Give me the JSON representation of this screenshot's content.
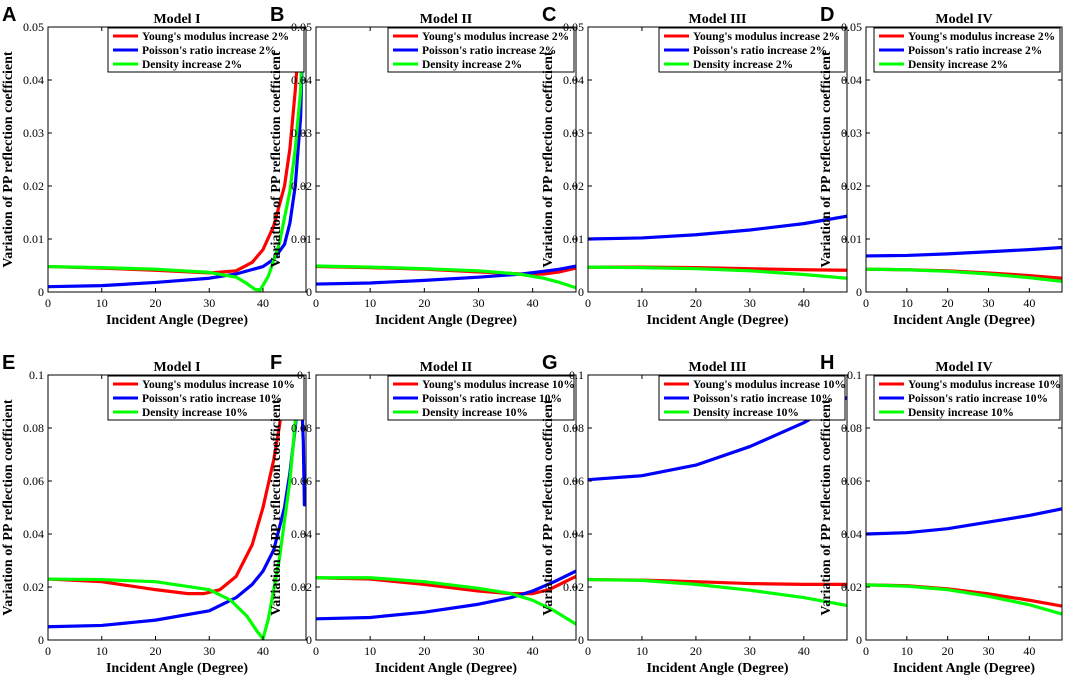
{
  "chart_data": [
    {
      "panel": "A",
      "type": "line",
      "title": "Model I",
      "xlabel": "Incident Angle (Degree)",
      "ylabel": "Variation of PP reflection coefficient",
      "xlim": [
        0,
        48
      ],
      "ylim": [
        0,
        0.05
      ],
      "xticks": [
        0,
        10,
        20,
        30,
        40
      ],
      "yticks": [
        0,
        0.01,
        0.02,
        0.03,
        0.04,
        0.05
      ],
      "ytick_labels": [
        "0",
        "0.01",
        "0.02",
        "0.03",
        "0.04",
        "0.05"
      ],
      "legend_position": "top-right",
      "series": [
        {
          "name": "Young's modulus increase 2%",
          "color": "#ff0000",
          "x": [
            0,
            10,
            20,
            30,
            35,
            38,
            40,
            42,
            44,
            45,
            46,
            47
          ],
          "y": [
            0.0048,
            0.0045,
            0.0041,
            0.0036,
            0.004,
            0.0056,
            0.008,
            0.0125,
            0.02,
            0.027,
            0.038,
            0.052
          ]
        },
        {
          "name": "Poisson's ratio increase 2%",
          "color": "#0000ff",
          "x": [
            0,
            10,
            20,
            30,
            35,
            40,
            42,
            44,
            45,
            46,
            47,
            47.5
          ],
          "y": [
            0.001,
            0.0012,
            0.0018,
            0.0026,
            0.0034,
            0.0048,
            0.0062,
            0.009,
            0.013,
            0.02,
            0.033,
            0.052
          ]
        },
        {
          "name": "Density increase 2%",
          "color": "#00ff00",
          "x": [
            0,
            10,
            20,
            30,
            35,
            37,
            38.5,
            39.5,
            41,
            43,
            45,
            46,
            47,
            47.5
          ],
          "y": [
            0.0048,
            0.0046,
            0.0043,
            0.0037,
            0.0028,
            0.0016,
            0.0005,
            0.0004,
            0.003,
            0.009,
            0.019,
            0.027,
            0.038,
            0.052
          ]
        }
      ]
    },
    {
      "panel": "B",
      "type": "line",
      "title": "Model II",
      "xlabel": "Incident Angle (Degree)",
      "ylabel": "Variation of PP reflection coefficient",
      "xlim": [
        0,
        48
      ],
      "ylim": [
        0,
        0.05
      ],
      "xticks": [
        0,
        10,
        20,
        30,
        40
      ],
      "yticks": [
        0,
        0.01,
        0.02,
        0.03,
        0.04,
        0.05
      ],
      "ytick_labels": [
        "0",
        "0.01",
        "0.02",
        "0.03",
        "0.04",
        "0.05"
      ],
      "legend_position": "top-right",
      "series": [
        {
          "name": "Young's modulus increase 2%",
          "color": "#ff0000",
          "x": [
            0,
            10,
            20,
            30,
            38,
            42,
            45,
            48
          ],
          "y": [
            0.0048,
            0.0046,
            0.0043,
            0.0038,
            0.0034,
            0.0034,
            0.0038,
            0.0045
          ]
        },
        {
          "name": "Poisson's ratio increase 2%",
          "color": "#0000ff",
          "x": [
            0,
            10,
            20,
            30,
            38,
            42,
            45,
            48
          ],
          "y": [
            0.0015,
            0.0017,
            0.0022,
            0.0028,
            0.0034,
            0.0039,
            0.0043,
            0.0049
          ]
        },
        {
          "name": "Density increase 2%",
          "color": "#00ff00",
          "x": [
            0,
            10,
            20,
            30,
            35,
            38,
            42,
            45,
            48
          ],
          "y": [
            0.0049,
            0.0047,
            0.0044,
            0.004,
            0.0036,
            0.0033,
            0.0026,
            0.0018,
            0.0008
          ]
        }
      ]
    },
    {
      "panel": "C",
      "type": "line",
      "title": "Model III",
      "xlabel": "Incident Angle (Degree)",
      "ylabel": "Variation of PP reflection coefficient",
      "xlim": [
        0,
        48
      ],
      "ylim": [
        0,
        0.05
      ],
      "xticks": [
        0,
        10,
        20,
        30,
        40
      ],
      "yticks": [
        0,
        0.01,
        0.02,
        0.03,
        0.04,
        0.05
      ],
      "ytick_labels": [
        "0",
        "0.01",
        "0.02",
        "0.03",
        "0.04",
        "0.05"
      ],
      "legend_position": "top-right",
      "series": [
        {
          "name": "Young's modulus increase 2%",
          "color": "#ff0000",
          "x": [
            0,
            10,
            20,
            30,
            40,
            48
          ],
          "y": [
            0.0047,
            0.0047,
            0.0046,
            0.0044,
            0.0042,
            0.0041
          ]
        },
        {
          "name": "Poisson's ratio increase 2%",
          "color": "#0000ff",
          "x": [
            0,
            10,
            20,
            30,
            40,
            48
          ],
          "y": [
            0.01,
            0.0102,
            0.0108,
            0.0117,
            0.0129,
            0.0143
          ]
        },
        {
          "name": "Density increase 2%",
          "color": "#00ff00",
          "x": [
            0,
            10,
            20,
            30,
            40,
            48
          ],
          "y": [
            0.0047,
            0.0046,
            0.0044,
            0.004,
            0.0033,
            0.0026
          ]
        }
      ]
    },
    {
      "panel": "D",
      "type": "line",
      "title": "Model IV",
      "xlabel": "Incident Angle (Degree)",
      "ylabel": "Variation of PP reflection coefficient",
      "xlim": [
        0,
        48
      ],
      "ylim": [
        0,
        0.05
      ],
      "xticks": [
        0,
        10,
        20,
        30,
        40
      ],
      "yticks": [
        0,
        0.01,
        0.02,
        0.03,
        0.04,
        0.05
      ],
      "ytick_labels": [
        "0",
        "0.01",
        "0.02",
        "0.03",
        "0.04",
        "0.05"
      ],
      "legend_position": "top-right",
      "series": [
        {
          "name": "Young's modulus increase 2%",
          "color": "#ff0000",
          "x": [
            0,
            10,
            20,
            30,
            40,
            48
          ],
          "y": [
            0.0043,
            0.0042,
            0.004,
            0.0036,
            0.0031,
            0.0026
          ]
        },
        {
          "name": "Poisson's ratio increase 2%",
          "color": "#0000ff",
          "x": [
            0,
            10,
            20,
            30,
            40,
            48
          ],
          "y": [
            0.0068,
            0.0069,
            0.0072,
            0.0076,
            0.008,
            0.0084
          ]
        },
        {
          "name": "Density increase 2%",
          "color": "#00ff00",
          "x": [
            0,
            10,
            20,
            30,
            40,
            48
          ],
          "y": [
            0.0043,
            0.0042,
            0.0039,
            0.0034,
            0.0027,
            0.002
          ]
        }
      ]
    },
    {
      "panel": "E",
      "type": "line",
      "title": "Model I",
      "xlabel": "Incident Angle (Degree)",
      "ylabel": "Variation of PP reflection coefficient",
      "xlim": [
        0,
        48
      ],
      "ylim": [
        0,
        0.1
      ],
      "xticks": [
        0,
        10,
        20,
        30,
        40
      ],
      "yticks": [
        0,
        0.02,
        0.04,
        0.06,
        0.08,
        0.1
      ],
      "ytick_labels": [
        "0",
        "0.02",
        "0.04",
        "0.06",
        "0.08",
        "0.1"
      ],
      "legend_position": "top-right",
      "series": [
        {
          "name": "Young's modulus increase 10%",
          "color": "#ff0000",
          "x": [
            0,
            10,
            20,
            26,
            29,
            32,
            35,
            38,
            40,
            42,
            43,
            44,
            44.5
          ],
          "y": [
            0.023,
            0.022,
            0.019,
            0.0175,
            0.0175,
            0.019,
            0.024,
            0.036,
            0.05,
            0.068,
            0.08,
            0.094,
            0.101
          ]
        },
        {
          "name": "Poisson's ratio increase 10%",
          "color": "#0000ff",
          "x": [
            0,
            10,
            20,
            30,
            35,
            38,
            40,
            42,
            44,
            45,
            46,
            47,
            47.5,
            47.7
          ],
          "y": [
            0.005,
            0.0055,
            0.0075,
            0.011,
            0.016,
            0.021,
            0.026,
            0.034,
            0.05,
            0.063,
            0.08,
            0.101,
            0.075,
            0.051
          ]
        },
        {
          "name": "Density increase 10%",
          "color": "#00ff00",
          "x": [
            0,
            10,
            20,
            30,
            34,
            37,
            39,
            40,
            41,
            43,
            45,
            46,
            46.7
          ],
          "y": [
            0.023,
            0.0228,
            0.022,
            0.019,
            0.015,
            0.009,
            0.003,
            0.0005,
            0.008,
            0.03,
            0.06,
            0.082,
            0.101
          ]
        }
      ]
    },
    {
      "panel": "F",
      "type": "line",
      "title": "Model II",
      "xlabel": "Incident Angle (Degree)",
      "ylabel": "Variation of PP reflection coefficient",
      "xlim": [
        0,
        48
      ],
      "ylim": [
        0,
        0.1
      ],
      "xticks": [
        0,
        10,
        20,
        30,
        40
      ],
      "yticks": [
        0,
        0.02,
        0.04,
        0.06,
        0.08,
        0.1
      ],
      "ytick_labels": [
        "0",
        "0.02",
        "0.04",
        "0.06",
        "0.08",
        "0.1"
      ],
      "legend_position": "top-right",
      "series": [
        {
          "name": "Young's modulus increase 10%",
          "color": "#ff0000",
          "x": [
            0,
            10,
            20,
            30,
            36,
            40,
            43,
            46,
            48
          ],
          "y": [
            0.0235,
            0.023,
            0.021,
            0.0185,
            0.0175,
            0.0175,
            0.019,
            0.022,
            0.024
          ]
        },
        {
          "name": "Poisson's ratio increase 10%",
          "color": "#0000ff",
          "x": [
            0,
            10,
            20,
            30,
            36,
            40,
            44,
            48
          ],
          "y": [
            0.008,
            0.0085,
            0.0105,
            0.0135,
            0.016,
            0.0185,
            0.022,
            0.026
          ]
        },
        {
          "name": "Density increase 10%",
          "color": "#00ff00",
          "x": [
            0,
            10,
            20,
            30,
            36,
            40,
            44,
            48
          ],
          "y": [
            0.0235,
            0.0235,
            0.022,
            0.0195,
            0.0175,
            0.015,
            0.011,
            0.006
          ]
        }
      ]
    },
    {
      "panel": "G",
      "type": "line",
      "title": "Model III",
      "xlabel": "Incident Angle (Degree)",
      "ylabel": "Variation of PP reflection coefficient",
      "xlim": [
        0,
        48
      ],
      "ylim": [
        0,
        0.1
      ],
      "xticks": [
        0,
        10,
        20,
        30,
        40
      ],
      "yticks": [
        0,
        0.02,
        0.04,
        0.06,
        0.08,
        0.1
      ],
      "ytick_labels": [
        "0",
        "0.02",
        "0.04",
        "0.06",
        "0.08",
        "0.1"
      ],
      "legend_position": "top-right",
      "series": [
        {
          "name": "Young's modulus increase 10%",
          "color": "#ff0000",
          "x": [
            0,
            10,
            20,
            30,
            40,
            48
          ],
          "y": [
            0.0228,
            0.0226,
            0.022,
            0.0213,
            0.021,
            0.021
          ]
        },
        {
          "name": "Poisson's ratio increase 10%",
          "color": "#0000ff",
          "x": [
            0,
            10,
            20,
            30,
            40,
            48
          ],
          "y": [
            0.0605,
            0.062,
            0.066,
            0.073,
            0.082,
            0.0915
          ]
        },
        {
          "name": "Density increase 10%",
          "color": "#00ff00",
          "x": [
            0,
            10,
            20,
            30,
            40,
            48
          ],
          "y": [
            0.0228,
            0.0225,
            0.021,
            0.0188,
            0.016,
            0.013
          ]
        }
      ]
    },
    {
      "panel": "H",
      "type": "line",
      "title": "Model IV",
      "xlabel": "Incident Angle (Degree)",
      "ylabel": "Variation of PP reflection coefficient",
      "xlim": [
        0,
        48
      ],
      "ylim": [
        0,
        0.1
      ],
      "xticks": [
        0,
        10,
        20,
        30,
        40
      ],
      "yticks": [
        0,
        0.02,
        0.04,
        0.06,
        0.08,
        0.1
      ],
      "ytick_labels": [
        "0",
        "0.02",
        "0.04",
        "0.06",
        "0.08",
        "0.1"
      ],
      "legend_position": "top-right",
      "series": [
        {
          "name": "Young's modulus increase 10%",
          "color": "#ff0000",
          "x": [
            0,
            10,
            20,
            30,
            40,
            48
          ],
          "y": [
            0.0208,
            0.0205,
            0.0193,
            0.0174,
            0.015,
            0.0128
          ]
        },
        {
          "name": "Poisson's ratio increase 10%",
          "color": "#0000ff",
          "x": [
            0,
            10,
            20,
            30,
            40,
            48
          ],
          "y": [
            0.04,
            0.0405,
            0.042,
            0.0445,
            0.047,
            0.0495
          ]
        },
        {
          "name": "Density increase 10%",
          "color": "#00ff00",
          "x": [
            0,
            10,
            20,
            30,
            40,
            48
          ],
          "y": [
            0.0208,
            0.0203,
            0.019,
            0.0165,
            0.0133,
            0.0098
          ]
        }
      ]
    }
  ]
}
